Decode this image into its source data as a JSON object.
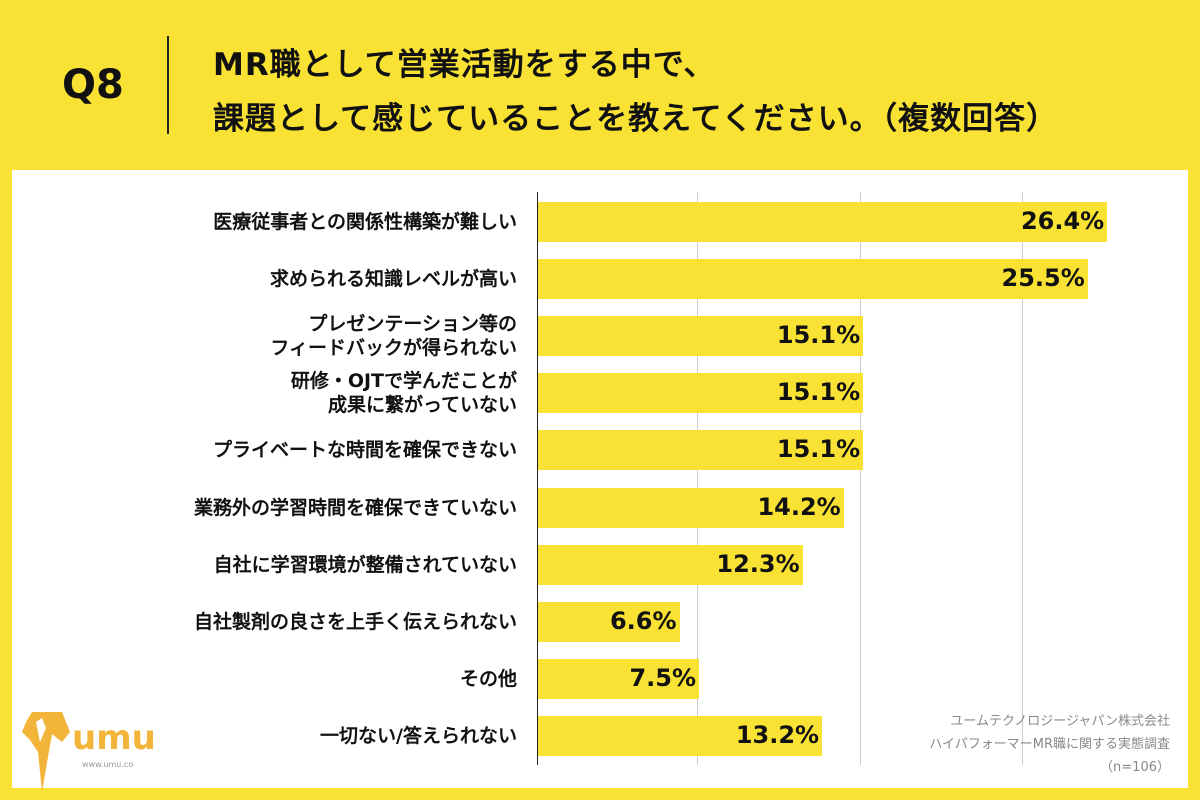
{
  "header": {
    "question": "Q8",
    "title_line1": "MR職として営業活動をする中で、",
    "title_line2": "課題として感じていることを教えてください。（複数回答）"
  },
  "colors": {
    "background": "#f9e234",
    "bar": "#f9e234",
    "panel": "#ffffff",
    "logo": "#f2b53a"
  },
  "chart_data": {
    "type": "bar",
    "orientation": "horizontal",
    "unit": "%",
    "grid": true,
    "xlim": [
      0,
      30
    ],
    "categories": [
      "医療従事者との関係性構築が難しい",
      "求められる知識レベルが高い",
      "プレゼンテーション等の\nフィードバックが得られない",
      "研修・OJTで学んだことが\n成果に繋がっていない",
      "プライベートな時間を確保できない",
      "業務外の学習時間を確保できていない",
      "自社に学習環境が整備されていない",
      "自社製剤の良さを上手く伝えられない",
      "その他",
      "一切ない/答えられない"
    ],
    "values": [
      26.4,
      25.5,
      15.1,
      15.1,
      15.1,
      14.2,
      12.3,
      6.6,
      7.5,
      13.2
    ],
    "data_labels": [
      "26.4%",
      "25.5%",
      "15.1%",
      "15.1%",
      "15.1%",
      "14.2%",
      "12.3%",
      "6.6%",
      "7.5%",
      "13.2%"
    ]
  },
  "source": {
    "line1": "ユームテクノロジージャパン株式会社",
    "line2": "ハイパフォーマーMR職に関する実態調査",
    "line3": "（n=106）"
  },
  "logo": {
    "text": "umu",
    "url": "www.umu.co",
    "icon": "umu-horse-logo"
  }
}
